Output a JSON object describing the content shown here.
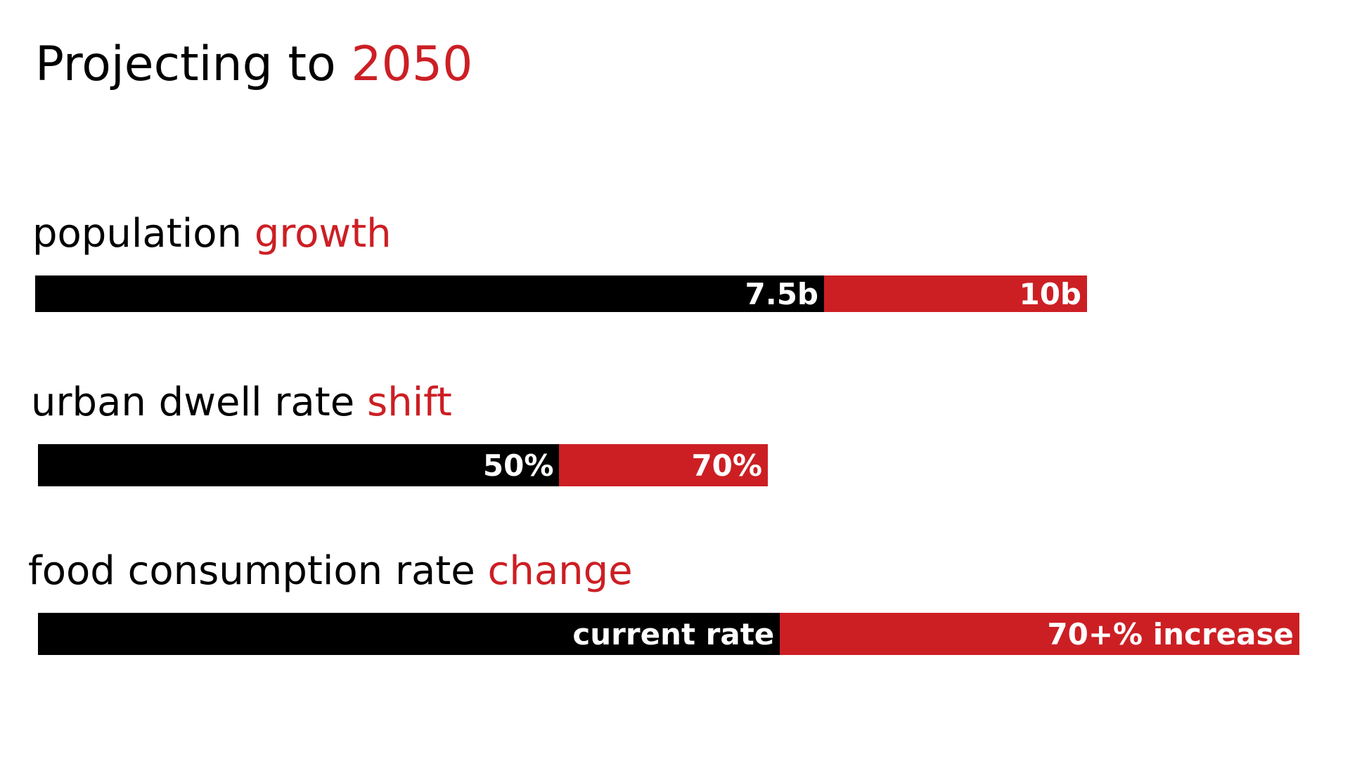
{
  "title": {
    "text": "Projecting to",
    "accent": "2050"
  },
  "colors": {
    "current": "#000000",
    "projected": "#cc1f24",
    "background": "#ffffff"
  },
  "chart_data": {
    "type": "bar",
    "orientation": "horizontal",
    "stacked": true,
    "categories": [
      {
        "label": "population",
        "accent": "growth",
        "current": 7.5,
        "projected": 10,
        "unit": "b",
        "current_text": "7.5b",
        "projected_text": "10b"
      },
      {
        "label": "urban dwell rate",
        "accent": "shift",
        "current": 50,
        "projected": 70,
        "unit": "%",
        "current_text": "50%",
        "projected_text": "70%"
      },
      {
        "label": "food consumption rate",
        "accent": "change",
        "current": 100,
        "projected": 170,
        "unit": "relative",
        "current_text": "current rate",
        "projected_text": "70+% increase"
      }
    ],
    "grid": false,
    "legend": "none"
  }
}
